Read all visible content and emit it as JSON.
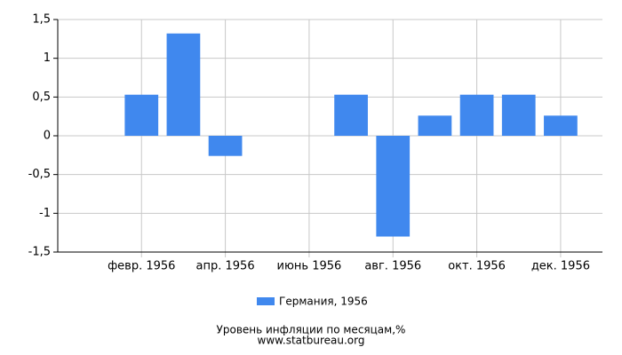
{
  "chart_data": {
    "type": "bar",
    "categories": [
      null,
      "февр. 1956",
      null,
      "апр. 1956",
      null,
      "июнь 1956",
      null,
      "авг. 1956",
      null,
      "окт. 1956",
      null,
      "дек. 1956"
    ],
    "series": [
      {
        "name": "Германия, 1956",
        "color": "#4088ee",
        "values": [
          0,
          0.53,
          1.32,
          -0.26,
          0,
          0,
          0.53,
          -1.3,
          0.26,
          0.53,
          0.53,
          0.26
        ]
      }
    ],
    "ylim": [
      -1.5,
      1.5
    ],
    "yticks": [
      {
        "value": -1.5,
        "label": "-1,5"
      },
      {
        "value": -1,
        "label": "-1"
      },
      {
        "value": -0.5,
        "label": "-0,5"
      },
      0,
      {
        "value": 0.5,
        "label": "0,5"
      },
      {
        "value": 1,
        "label": "1"
      },
      {
        "value": 1.5,
        "label": "1,5"
      }
    ],
    "grid": true,
    "caption": "Уровень инфляции по месяцам,%",
    "source": "www.statbureau.org"
  }
}
